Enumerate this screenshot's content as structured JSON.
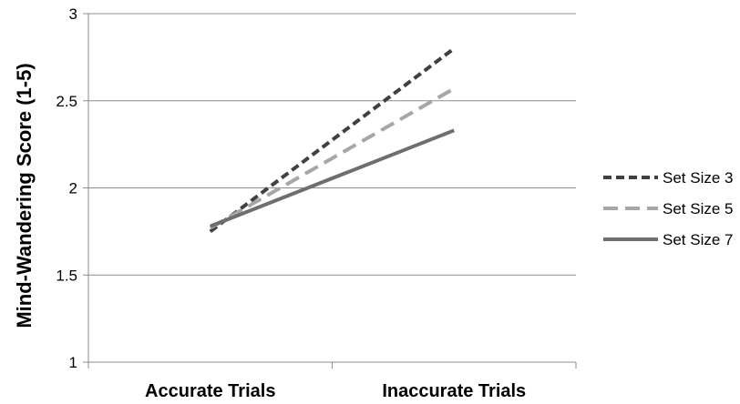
{
  "chart_data": {
    "type": "line",
    "title": "",
    "xlabel": "",
    "ylabel": "Mind-Wandering Score (1-5)",
    "categories": [
      "Accurate Trials",
      "Inaccurate Trials"
    ],
    "ylim": [
      1,
      3
    ],
    "yticks": [
      "1",
      "1.5",
      "2",
      "2.5",
      "3"
    ],
    "grid": true,
    "legend_position": "right",
    "series": [
      {
        "name": "Set Size 3",
        "values": [
          1.75,
          2.8
        ],
        "color": "#404040",
        "dash": "short-dash"
      },
      {
        "name": "Set Size 5",
        "values": [
          1.77,
          2.57
        ],
        "color": "#a6a6a6",
        "dash": "long-dash"
      },
      {
        "name": "Set Size 7",
        "values": [
          1.78,
          2.33
        ],
        "color": "#6e6e6e",
        "dash": "solid"
      }
    ]
  }
}
